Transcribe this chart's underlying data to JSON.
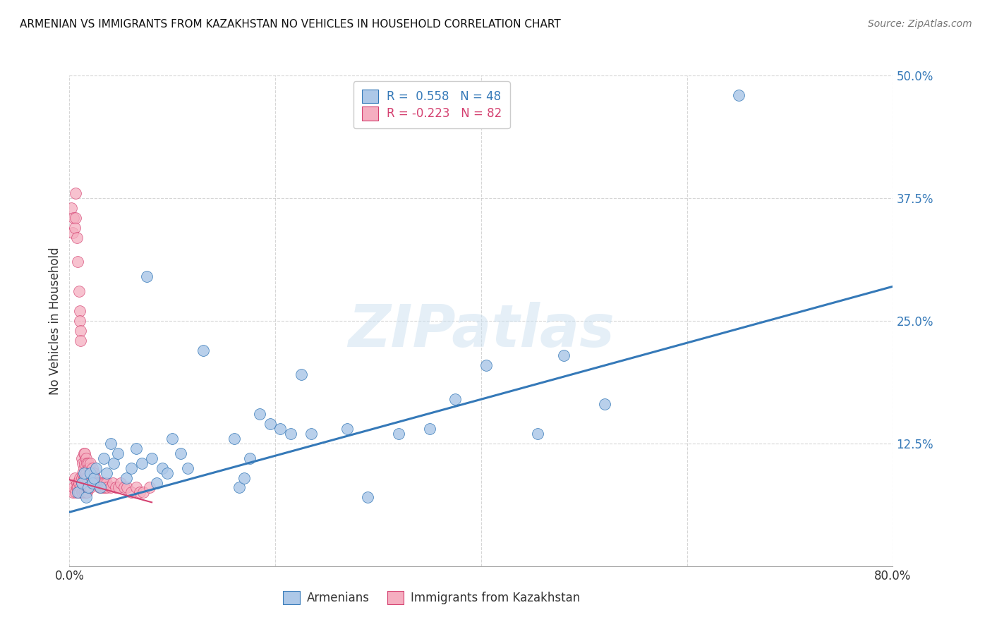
{
  "title": "ARMENIAN VS IMMIGRANTS FROM KAZAKHSTAN NO VEHICLES IN HOUSEHOLD CORRELATION CHART",
  "source": "Source: ZipAtlas.com",
  "ylabel": "No Vehicles in Household",
  "xlim": [
    0.0,
    0.8
  ],
  "ylim": [
    0.0,
    0.5
  ],
  "xticks": [
    0.0,
    0.2,
    0.4,
    0.6,
    0.8
  ],
  "xticklabels": [
    "0.0%",
    "",
    "",
    "",
    "80.0%"
  ],
  "yticks": [
    0.0,
    0.125,
    0.25,
    0.375,
    0.5
  ],
  "yticklabels": [
    "",
    "12.5%",
    "25.0%",
    "37.5%",
    "50.0%"
  ],
  "legend1_label": "R =  0.558   N = 48",
  "legend2_label": "R = -0.223   N = 82",
  "armenians_color": "#adc8e8",
  "kazakh_color": "#f5aec0",
  "trendline_armenians_color": "#3579b8",
  "trendline_kazakh_color": "#d44070",
  "background_color": "#ffffff",
  "grid_color": "#bbbbbb",
  "arm_trend_x": [
    0.0,
    0.8
  ],
  "arm_trend_y": [
    0.055,
    0.285
  ],
  "kaz_trend_x": [
    0.0,
    0.08
  ],
  "kaz_trend_y": [
    0.088,
    0.065
  ],
  "arm_x": [
    0.008,
    0.012,
    0.014,
    0.016,
    0.018,
    0.02,
    0.022,
    0.024,
    0.026,
    0.03,
    0.033,
    0.036,
    0.04,
    0.043,
    0.047,
    0.055,
    0.06,
    0.065,
    0.07,
    0.075,
    0.08,
    0.085,
    0.09,
    0.095,
    0.1,
    0.108,
    0.115,
    0.13,
    0.16,
    0.165,
    0.17,
    0.175,
    0.185,
    0.195,
    0.205,
    0.215,
    0.225,
    0.235,
    0.27,
    0.29,
    0.32,
    0.35,
    0.375,
    0.405,
    0.455,
    0.48,
    0.52,
    0.65
  ],
  "arm_y": [
    0.075,
    0.085,
    0.095,
    0.07,
    0.08,
    0.095,
    0.085,
    0.09,
    0.1,
    0.08,
    0.11,
    0.095,
    0.125,
    0.105,
    0.115,
    0.09,
    0.1,
    0.12,
    0.105,
    0.295,
    0.11,
    0.085,
    0.1,
    0.095,
    0.13,
    0.115,
    0.1,
    0.22,
    0.13,
    0.08,
    0.09,
    0.11,
    0.155,
    0.145,
    0.14,
    0.135,
    0.195,
    0.135,
    0.14,
    0.07,
    0.135,
    0.14,
    0.17,
    0.205,
    0.135,
    0.215,
    0.165,
    0.48
  ],
  "kaz_x": [
    0.002,
    0.003,
    0.003,
    0.004,
    0.004,
    0.005,
    0.005,
    0.006,
    0.006,
    0.006,
    0.007,
    0.007,
    0.007,
    0.008,
    0.008,
    0.008,
    0.009,
    0.009,
    0.009,
    0.01,
    0.01,
    0.01,
    0.01,
    0.011,
    0.011,
    0.011,
    0.012,
    0.012,
    0.012,
    0.013,
    0.013,
    0.013,
    0.013,
    0.014,
    0.014,
    0.014,
    0.014,
    0.015,
    0.015,
    0.015,
    0.015,
    0.016,
    0.016,
    0.016,
    0.017,
    0.017,
    0.017,
    0.018,
    0.018,
    0.019,
    0.019,
    0.02,
    0.02,
    0.021,
    0.022,
    0.023,
    0.024,
    0.025,
    0.026,
    0.027,
    0.028,
    0.029,
    0.03,
    0.031,
    0.032,
    0.033,
    0.034,
    0.035,
    0.036,
    0.037,
    0.04,
    0.042,
    0.045,
    0.048,
    0.05,
    0.053,
    0.056,
    0.06,
    0.065,
    0.068,
    0.072,
    0.078
  ],
  "kaz_y": [
    0.365,
    0.34,
    0.075,
    0.355,
    0.08,
    0.345,
    0.09,
    0.38,
    0.355,
    0.075,
    0.335,
    0.085,
    0.08,
    0.31,
    0.08,
    0.075,
    0.28,
    0.085,
    0.075,
    0.26,
    0.25,
    0.09,
    0.075,
    0.24,
    0.23,
    0.08,
    0.11,
    0.09,
    0.075,
    0.105,
    0.095,
    0.085,
    0.075,
    0.115,
    0.1,
    0.09,
    0.075,
    0.115,
    0.105,
    0.09,
    0.075,
    0.11,
    0.095,
    0.075,
    0.105,
    0.09,
    0.075,
    0.105,
    0.08,
    0.1,
    0.08,
    0.105,
    0.08,
    0.095,
    0.1,
    0.09,
    0.095,
    0.09,
    0.085,
    0.085,
    0.085,
    0.08,
    0.085,
    0.08,
    0.085,
    0.08,
    0.085,
    0.08,
    0.085,
    0.08,
    0.08,
    0.085,
    0.08,
    0.08,
    0.085,
    0.08,
    0.08,
    0.075,
    0.08,
    0.075,
    0.075,
    0.08
  ]
}
